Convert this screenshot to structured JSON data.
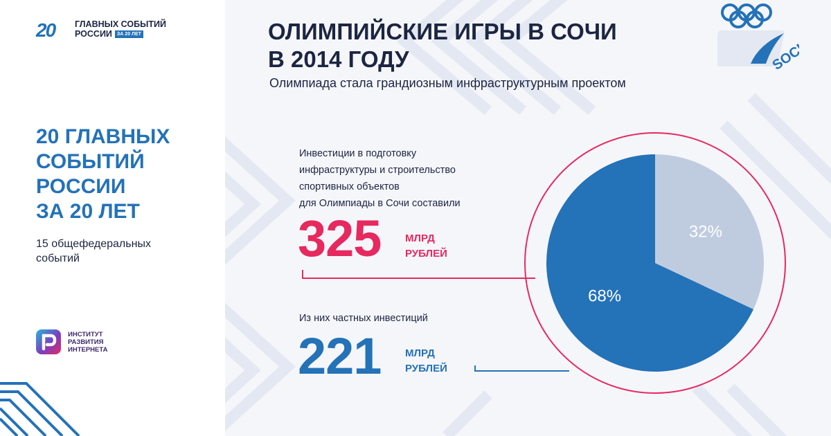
{
  "brand": {
    "mark": "20",
    "line1": "ГЛАВНЫХ СОБЫТИЙ",
    "line2": "РОССИИ",
    "badge": "ЗА 20 ЛЕТ"
  },
  "sidebar": {
    "title_lines": [
      "20 ГЛАВНЫХ",
      "СОБЫТИЙ",
      "РОССИИ",
      "ЗА 20 ЛЕТ"
    ],
    "subtitle_lines": [
      "15 общефедеральных",
      "событий"
    ]
  },
  "partner": {
    "lines": [
      "ИНСТИТУТ",
      "РАЗВИТИЯ",
      "ИНТЕРНЕТА"
    ]
  },
  "sochi_logo": {
    "text": "SOCHI"
  },
  "colors": {
    "accent_blue": "#2472b8",
    "accent_pink": "#e6295f",
    "slice_gray": "#bfcce0",
    "text_dark": "#1c2541"
  },
  "header": {
    "title_lines": [
      "ОЛИМПИЙСКИЕ ИГРЫ В СОЧИ",
      "В 2014 ГОДУ"
    ],
    "subtitle": "Олимпиада стала грандиозным инфраструктурным проектом"
  },
  "stats": {
    "investment": {
      "desc_lines": [
        "Инвестиции в подготовку",
        "инфраструктуры и строительство",
        "спортивных объектов",
        "для Олимпиады в Сочи составили"
      ],
      "value": "325",
      "unit_lines": [
        "МЛРД",
        "РУБЛЕЙ"
      ]
    },
    "private": {
      "desc": "Из них частных инвестиций",
      "value": "221",
      "unit_lines": [
        "МЛРД",
        "РУБЛЕЙ"
      ]
    }
  },
  "chart_data": {
    "type": "pie",
    "slices": [
      {
        "label": "68%",
        "value": 68,
        "color": "#2472b8"
      },
      {
        "label": "32%",
        "value": 32,
        "color": "#bfcce0"
      }
    ]
  }
}
